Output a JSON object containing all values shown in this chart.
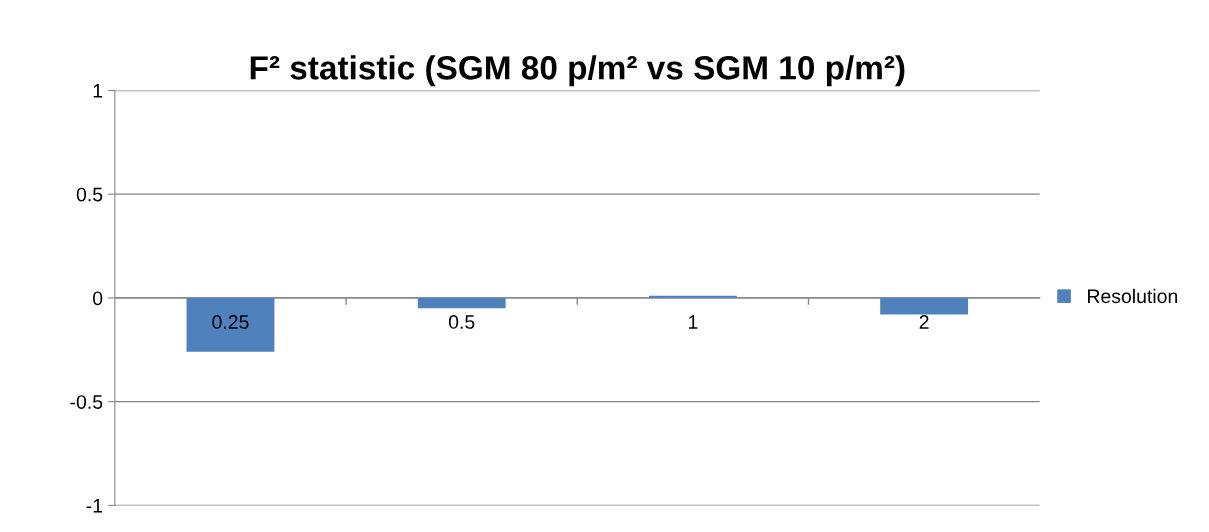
{
  "chart_data": {
    "type": "bar",
    "title": "F² statistic (SGM 80 p/m² vs SGM 10 p/m²)",
    "categories": [
      "0.25",
      "0.5",
      "1",
      "2"
    ],
    "series": [
      {
        "name": "Resolution",
        "color": "#4f81bd",
        "values": [
          -0.26,
          -0.05,
          0.01,
          -0.08
        ]
      }
    ],
    "ylim": [
      -1,
      1
    ],
    "yticks": [
      -1,
      -0.5,
      0,
      0.5,
      1
    ],
    "grid": "y",
    "legend": "right"
  }
}
